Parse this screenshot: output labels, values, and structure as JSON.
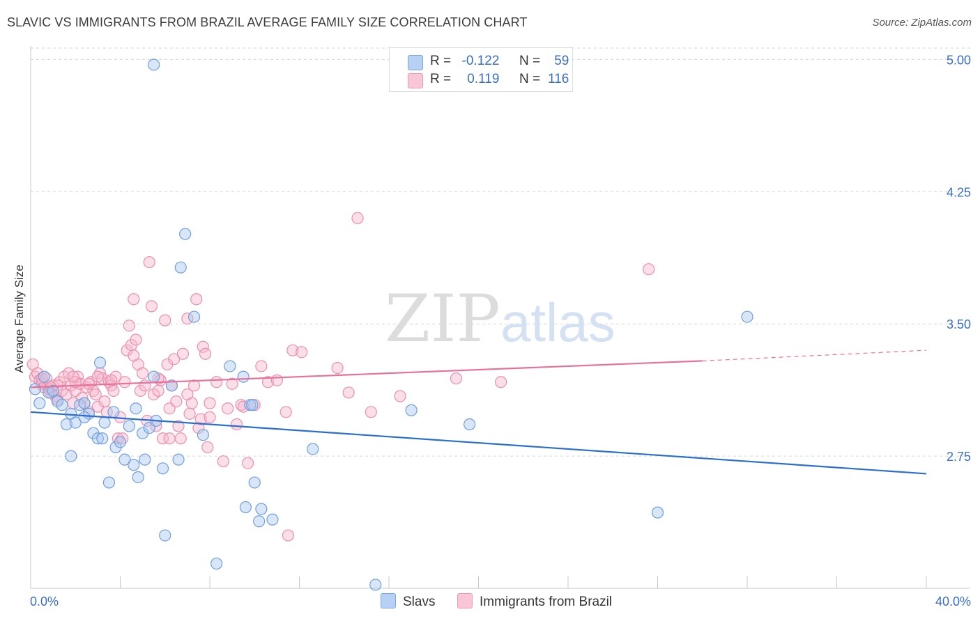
{
  "title": "SLAVIC VS IMMIGRANTS FROM BRAZIL AVERAGE FAMILY SIZE CORRELATION CHART",
  "source": "Source: ZipAtlas.com",
  "watermark": {
    "zip": "ZIP",
    "atlas": "atlas"
  },
  "colors": {
    "slavs_fill": "#a9c7f0",
    "slavs_stroke": "#6f9fde",
    "slavs_line": "#2a6fcf",
    "brazil_fill": "#f7b8cb",
    "brazil_stroke": "#ea8fad",
    "brazil_line": "#e8719a",
    "axis_text": "#3a6fc7",
    "grid": "#d5d5d5"
  },
  "legend": {
    "r_label": "R =",
    "n_label": "N =",
    "slavs": {
      "r": "-0.122",
      "n": "59"
    },
    "brazil": {
      "r": "0.119",
      "n": "116"
    }
  },
  "bottom_legend": {
    "slavs": "Slavs",
    "brazil": "Immigrants from Brazil"
  },
  "chart_data": {
    "type": "scatter",
    "title": "SLAVIC VS IMMIGRANTS FROM BRAZIL AVERAGE FAMILY SIZE CORRELATION CHART",
    "xlabel": "",
    "ylabel": "Average Family Size",
    "xlim": [
      0,
      40
    ],
    "ylim": [
      2.0,
      5.12
    ],
    "x_tick_labels": [
      "0.0%",
      "40.0%"
    ],
    "y_ticks": [
      2.75,
      3.5,
      4.25,
      5.0
    ],
    "y_tick_labels": [
      "2.75",
      "3.50",
      "4.25",
      "5.00"
    ],
    "series": [
      {
        "name": "Slavs",
        "trend": {
          "x": [
            0,
            40
          ],
          "y": [
            3.0,
            2.65
          ]
        },
        "points": [
          [
            0.2,
            3.13
          ],
          [
            0.4,
            3.05
          ],
          [
            0.6,
            3.2
          ],
          [
            0.8,
            3.11
          ],
          [
            1.0,
            3.12
          ],
          [
            1.2,
            3.06
          ],
          [
            1.4,
            3.04
          ],
          [
            1.6,
            2.93
          ],
          [
            1.8,
            2.75
          ],
          [
            1.8,
            2.99
          ],
          [
            2.0,
            2.94
          ],
          [
            2.2,
            3.04
          ],
          [
            2.4,
            3.05
          ],
          [
            2.6,
            2.99
          ],
          [
            2.8,
            2.88
          ],
          [
            3.0,
            2.85
          ],
          [
            3.1,
            3.28
          ],
          [
            3.3,
            2.94
          ],
          [
            3.5,
            2.6
          ],
          [
            3.7,
            3.0
          ],
          [
            3.8,
            2.8
          ],
          [
            4.0,
            2.83
          ],
          [
            4.2,
            2.73
          ],
          [
            4.4,
            2.92
          ],
          [
            4.6,
            2.7
          ],
          [
            4.7,
            3.02
          ],
          [
            4.8,
            2.63
          ],
          [
            5.0,
            2.88
          ],
          [
            5.1,
            2.73
          ],
          [
            5.3,
            2.91
          ],
          [
            5.5,
            3.2
          ],
          [
            5.6,
            2.95
          ],
          [
            5.9,
            2.68
          ],
          [
            6.0,
            2.3
          ],
          [
            6.3,
            3.15
          ],
          [
            6.6,
            2.73
          ],
          [
            6.7,
            3.82
          ],
          [
            6.9,
            4.01
          ],
          [
            7.3,
            3.54
          ],
          [
            7.7,
            2.87
          ],
          [
            8.3,
            2.14
          ],
          [
            8.9,
            3.26
          ],
          [
            9.5,
            3.2
          ],
          [
            9.8,
            3.04
          ],
          [
            10.0,
            2.6
          ],
          [
            9.6,
            2.46
          ],
          [
            10.2,
            2.38
          ],
          [
            10.3,
            2.45
          ],
          [
            10.8,
            2.39
          ],
          [
            12.6,
            2.79
          ],
          [
            15.4,
            2.02
          ],
          [
            17.0,
            3.01
          ],
          [
            19.6,
            2.93
          ],
          [
            28.0,
            2.43
          ],
          [
            32.0,
            3.54
          ],
          [
            5.5,
            4.97
          ],
          [
            9.9,
            3.04
          ],
          [
            3.2,
            2.85
          ],
          [
            2.4,
            2.97
          ]
        ]
      },
      {
        "name": "Immigrants from Brazil",
        "trend": {
          "x": [
            0,
            30
          ],
          "y": [
            3.14,
            3.29
          ]
        },
        "trend_dashed": {
          "x": [
            30,
            40
          ],
          "y": [
            3.29,
            3.35
          ]
        },
        "points": [
          [
            0.1,
            3.27
          ],
          [
            0.2,
            3.2
          ],
          [
            0.3,
            3.22
          ],
          [
            0.4,
            3.18
          ],
          [
            0.5,
            3.16
          ],
          [
            0.6,
            3.14
          ],
          [
            0.7,
            3.19
          ],
          [
            0.8,
            3.13
          ],
          [
            0.9,
            3.11
          ],
          [
            1.0,
            3.15
          ],
          [
            1.1,
            3.09
          ],
          [
            1.2,
            3.07
          ],
          [
            1.3,
            3.17
          ],
          [
            1.4,
            3.12
          ],
          [
            1.5,
            3.2
          ],
          [
            1.6,
            3.1
          ],
          [
            1.7,
            3.22
          ],
          [
            1.8,
            3.15
          ],
          [
            1.9,
            3.05
          ],
          [
            2.0,
            3.12
          ],
          [
            2.1,
            3.2
          ],
          [
            2.2,
            3.16
          ],
          [
            2.3,
            3.08
          ],
          [
            2.4,
            3.05
          ],
          [
            2.5,
            3.14
          ],
          [
            2.6,
            3.0
          ],
          [
            2.7,
            3.17
          ],
          [
            2.8,
            3.12
          ],
          [
            2.9,
            3.1
          ],
          [
            3.0,
            3.03
          ],
          [
            3.1,
            3.22
          ],
          [
            3.2,
            3.19
          ],
          [
            3.3,
            3.06
          ],
          [
            3.4,
            3.0
          ],
          [
            3.5,
            3.17
          ],
          [
            3.6,
            3.15
          ],
          [
            3.7,
            3.12
          ],
          [
            3.8,
            3.2
          ],
          [
            3.9,
            2.85
          ],
          [
            4.0,
            2.97
          ],
          [
            4.2,
            3.17
          ],
          [
            4.3,
            3.35
          ],
          [
            4.4,
            3.49
          ],
          [
            4.5,
            3.38
          ],
          [
            4.6,
            3.64
          ],
          [
            4.7,
            3.41
          ],
          [
            4.8,
            3.27
          ],
          [
            4.9,
            3.12
          ],
          [
            5.0,
            3.22
          ],
          [
            5.1,
            3.15
          ],
          [
            5.2,
            2.95
          ],
          [
            5.3,
            3.85
          ],
          [
            5.4,
            3.6
          ],
          [
            5.5,
            3.1
          ],
          [
            5.6,
            2.92
          ],
          [
            5.7,
            3.12
          ],
          [
            5.8,
            3.18
          ],
          [
            5.9,
            2.85
          ],
          [
            6.0,
            3.52
          ],
          [
            6.1,
            3.27
          ],
          [
            6.2,
            3.02
          ],
          [
            6.3,
            3.15
          ],
          [
            6.4,
            3.3
          ],
          [
            6.5,
            3.06
          ],
          [
            6.6,
            2.92
          ],
          [
            6.7,
            2.85
          ],
          [
            6.8,
            3.33
          ],
          [
            7.0,
            3.53
          ],
          [
            7.1,
            2.99
          ],
          [
            7.2,
            3.05
          ],
          [
            7.3,
            3.15
          ],
          [
            7.4,
            3.64
          ],
          [
            7.5,
            2.91
          ],
          [
            7.6,
            2.96
          ],
          [
            7.7,
            3.37
          ],
          [
            7.8,
            3.33
          ],
          [
            7.9,
            2.8
          ],
          [
            8.0,
            3.05
          ],
          [
            8.3,
            3.17
          ],
          [
            8.6,
            2.72
          ],
          [
            8.8,
            3.02
          ],
          [
            9.0,
            3.16
          ],
          [
            9.2,
            2.93
          ],
          [
            9.4,
            3.04
          ],
          [
            9.7,
            2.71
          ],
          [
            10.0,
            3.04
          ],
          [
            10.3,
            3.26
          ],
          [
            10.6,
            3.17
          ],
          [
            11.0,
            3.18
          ],
          [
            11.5,
            2.3
          ],
          [
            11.7,
            3.35
          ],
          [
            12.1,
            3.34
          ],
          [
            13.7,
            3.25
          ],
          [
            14.2,
            3.11
          ],
          [
            15.2,
            3.0
          ],
          [
            16.5,
            3.09
          ],
          [
            19.0,
            3.19
          ],
          [
            21.0,
            3.17
          ],
          [
            27.6,
            3.81
          ],
          [
            14.6,
            4.1
          ],
          [
            2.0,
            3.17
          ],
          [
            3.6,
            3.18
          ],
          [
            4.1,
            2.85
          ],
          [
            6.2,
            2.85
          ],
          [
            7.0,
            3.1
          ],
          [
            8.0,
            2.97
          ],
          [
            9.5,
            3.03
          ],
          [
            11.4,
            3.0
          ],
          [
            5.7,
            3.19
          ],
          [
            4.6,
            3.32
          ],
          [
            3.0,
            3.2
          ],
          [
            2.6,
            3.16
          ],
          [
            1.9,
            3.2
          ],
          [
            1.2,
            3.15
          ],
          [
            0.9,
            3.14
          ],
          [
            0.5,
            3.19
          ]
        ]
      }
    ]
  }
}
